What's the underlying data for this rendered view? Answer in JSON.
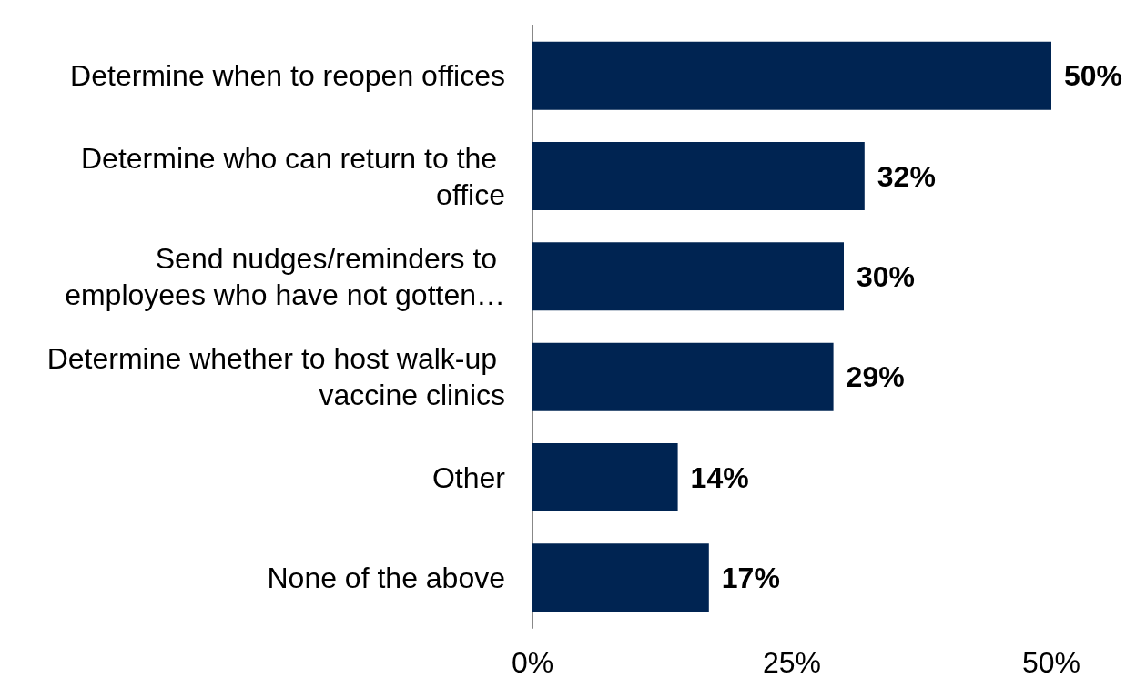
{
  "chart_data": {
    "type": "bar",
    "orientation": "horizontal",
    "categories": [
      "Determine when to reopen offices",
      "Determine who can return to the office",
      "Send nudges/reminders to employees who have not gotten…",
      "Determine whether to host walk-up vaccine clinics",
      "Other",
      "None of the above"
    ],
    "values": [
      50,
      32,
      30,
      29,
      14,
      17
    ],
    "value_labels": [
      "50%",
      "32%",
      "30%",
      "29%",
      "14%",
      "17%"
    ],
    "color": "#002452",
    "xlim": [
      0,
      50
    ],
    "xticks": [
      {
        "value": 0,
        "label": "0%"
      },
      {
        "value": 25,
        "label": "25%"
      },
      {
        "value": 50,
        "label": "50%"
      }
    ],
    "grid": false
  }
}
